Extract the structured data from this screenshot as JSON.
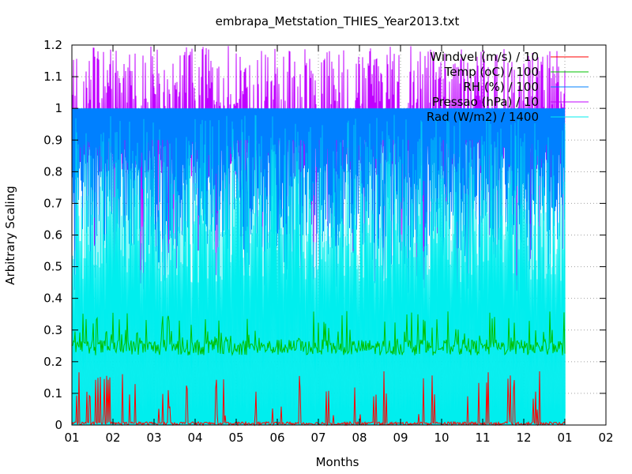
{
  "chart_data": {
    "type": "line",
    "title": "embrapa_Metstation_THIES_Year2013.txt",
    "xlabel": "Months",
    "ylabel": "Arbitrary Scaling",
    "xlim": [
      0,
      13
    ],
    "ylim": [
      0,
      1.2
    ],
    "x_ticks": [
      "01",
      "02",
      "03",
      "04",
      "05",
      "06",
      "07",
      "08",
      "09",
      "10",
      "11",
      "12",
      "01",
      "02"
    ],
    "y_ticks": [
      "0",
      "0.1",
      "0.2",
      "0.3",
      "0.4",
      "0.5",
      "0.6",
      "0.7",
      "0.8",
      "0.9",
      "1",
      "1.1",
      "1.2"
    ],
    "grid": true,
    "legend_position": "top-right",
    "x_start": 0,
    "x_end": 12,
    "series": [
      {
        "name": "Windvel (m/s) / 10",
        "color": "#ff0000",
        "base": 0.0,
        "min": 0.0,
        "max": 0.17
      },
      {
        "name": "Temp (oC) / 100",
        "color": "#00c000",
        "base": 0.24,
        "min": 0.22,
        "max": 0.36
      },
      {
        "name": "RH (%) / 100",
        "color": "#0080ff",
        "base": 0.95,
        "min": 0.4,
        "max": 1.0
      },
      {
        "name": "Pressao (hPa) / 10",
        "color": "#c000ff",
        "base": 1.0,
        "min": 0.4,
        "max": 1.2
      },
      {
        "name": "Rad (W/m2) / 1400",
        "color": "#00eeee",
        "base": 0.0,
        "min": 0.0,
        "max": 0.98
      }
    ]
  }
}
